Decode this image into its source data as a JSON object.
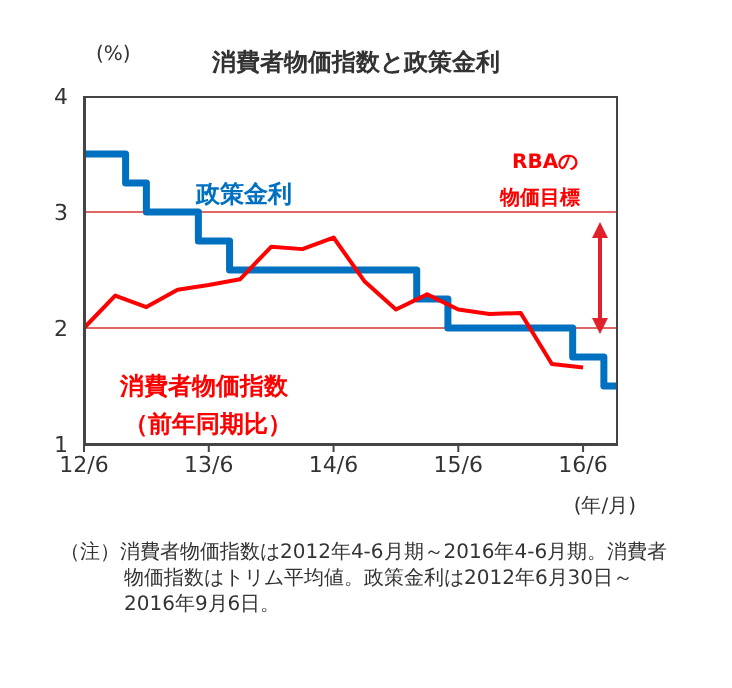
{
  "chart_data": {
    "type": "line",
    "title": "消費者物価指数と政策金利",
    "ylabel": "(%)",
    "xlabel": "(年/月)",
    "xlim": [
      "2012-06",
      "2016-09-06"
    ],
    "xticks": [
      {
        "value": "2012-06",
        "label": "12/6"
      },
      {
        "value": "2013-06",
        "label": "13/6"
      },
      {
        "value": "2014-06",
        "label": "14/6"
      },
      {
        "value": "2015-06",
        "label": "15/6"
      },
      {
        "value": "2016-06",
        "label": "16/6"
      }
    ],
    "ylim": [
      1,
      4
    ],
    "yticks": [
      1,
      2,
      3,
      4
    ],
    "grid": false,
    "legend": false,
    "marker": "none",
    "line_style": "solid",
    "series": [
      {
        "name": "政策金利",
        "type": "step",
        "color": "#0070c0",
        "x": [
          "2012-06",
          "2012-10",
          "2012-12",
          "2013-05",
          "2013-08",
          "2015-02",
          "2015-05",
          "2016-05",
          "2016-08",
          "2016-09-06"
        ],
        "values": [
          3.5,
          3.25,
          3.0,
          2.75,
          2.5,
          2.25,
          2.0,
          1.75,
          1.5,
          1.5
        ]
      },
      {
        "name": "消費者物価指数",
        "color": "#ff0000",
        "x": [
          "2012-06",
          "2012-09",
          "2012-12",
          "2013-03",
          "2013-06",
          "2013-09",
          "2013-12",
          "2014-03",
          "2014-06",
          "2014-09",
          "2014-12",
          "2015-03",
          "2015-06",
          "2015-09",
          "2015-12",
          "2016-03",
          "2016-06"
        ],
        "values": [
          2.0,
          2.28,
          2.18,
          2.33,
          2.37,
          2.42,
          2.7,
          2.68,
          2.78,
          2.4,
          2.16,
          2.29,
          2.16,
          2.12,
          2.13,
          1.69,
          1.66
        ]
      }
    ],
    "ref_lines": [
      {
        "axis": "y",
        "value": 2,
        "color": "#e06666"
      },
      {
        "axis": "y",
        "value": 3,
        "color": "#e06666"
      }
    ],
    "annotations": [
      "（前年同期比）",
      "RBAの",
      "物価目標",
      "（注）消費者物価指数は2012年4-6月期～2016年4-6月期。消費者物価指数はトリム平均値。政策金利は2012年6月30日～2016年9月6日。"
    ]
  }
}
